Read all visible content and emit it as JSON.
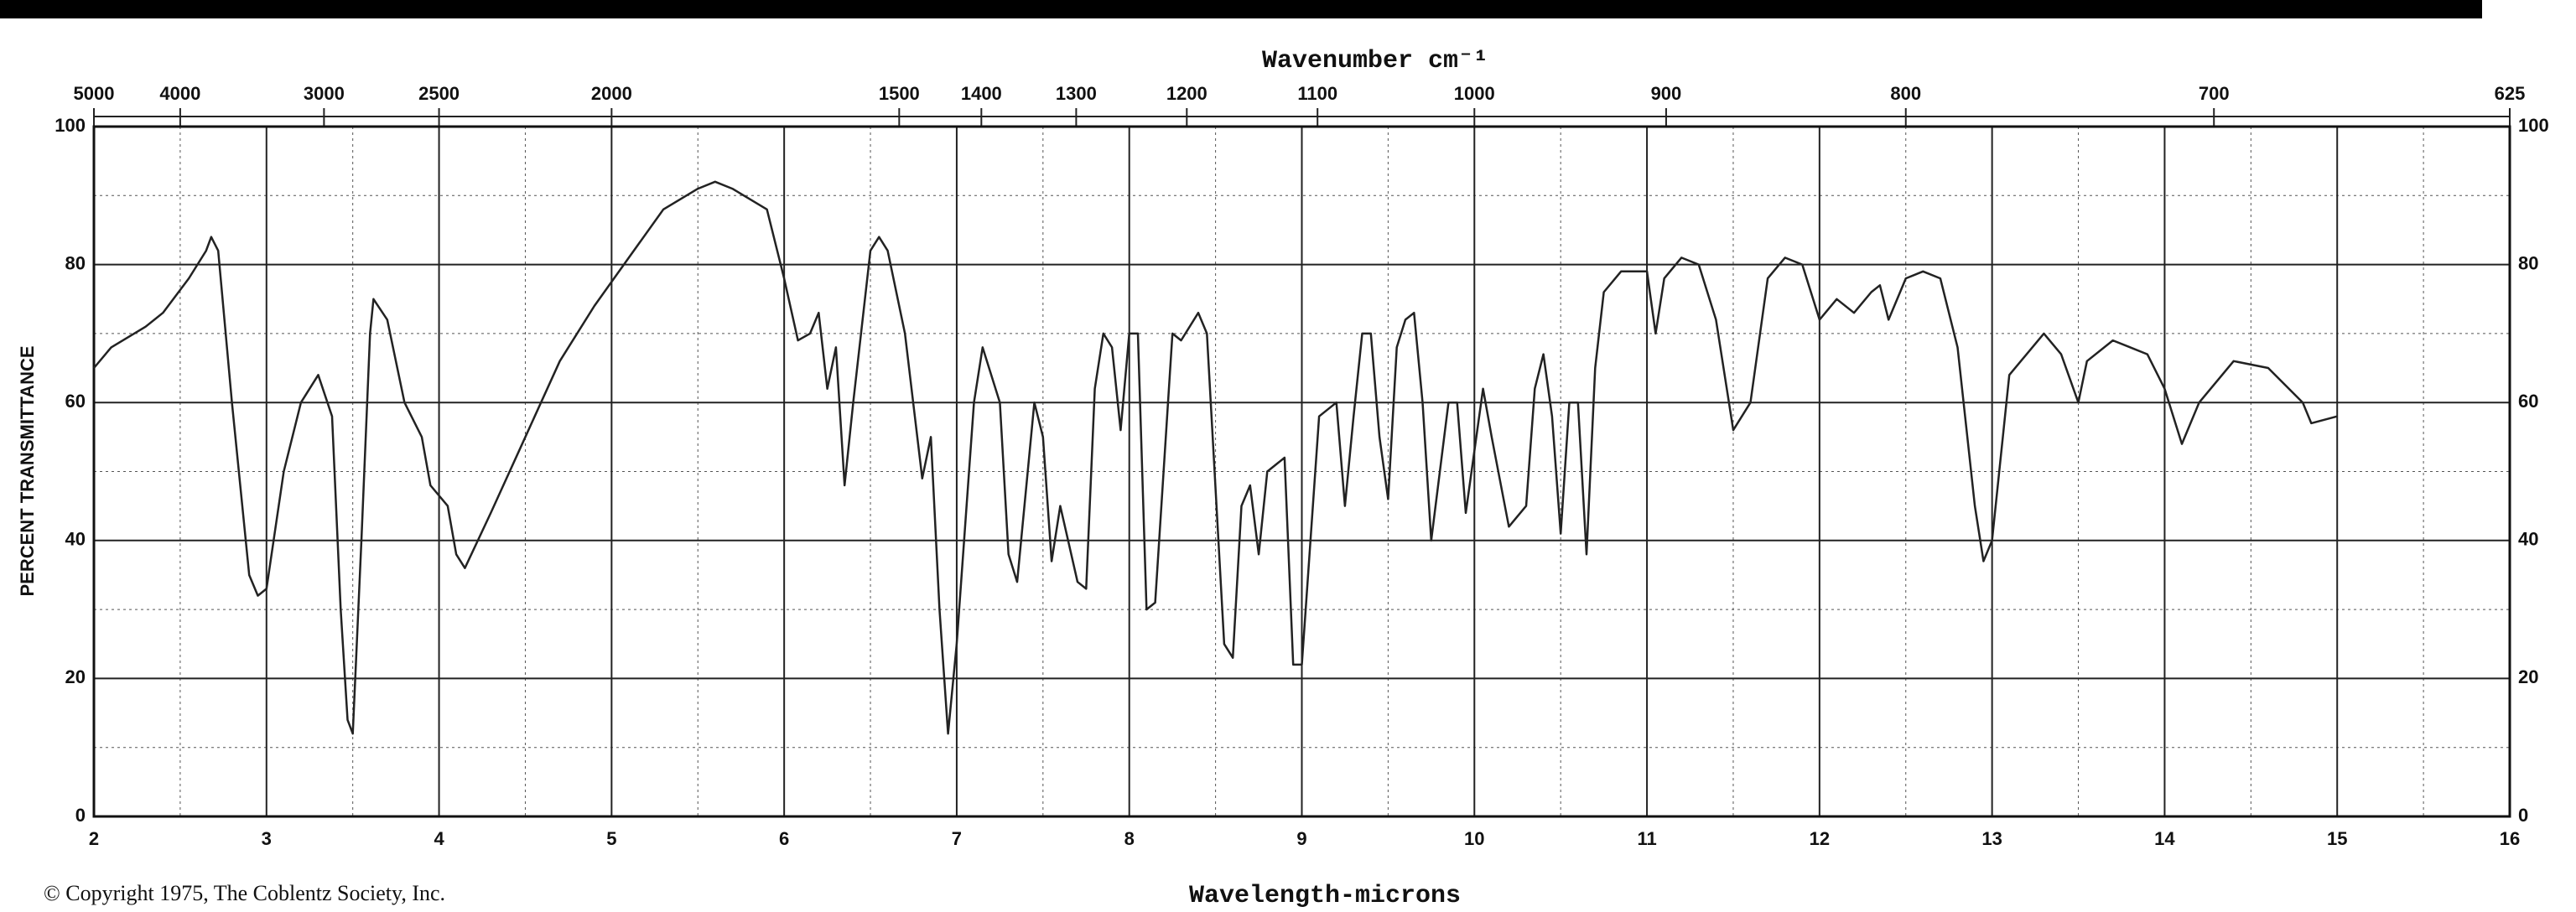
{
  "chart_data": {
    "type": "line",
    "title": "Wavenumber cm⁻¹",
    "x_label": "Wavelength-microns",
    "y_label": "PERCENT TRANSMITTANCE",
    "copyright": "© Copyright 1975, The Coblentz Society, Inc.",
    "xlim": [
      2,
      16
    ],
    "xticks": [
      2,
      3,
      4,
      5,
      6,
      7,
      8,
      9,
      10,
      11,
      12,
      13,
      14,
      15,
      16
    ],
    "xminorticks": [
      2.5,
      3.5,
      4.5,
      5.5,
      6.5,
      7.5,
      8.5,
      9.5,
      10.5,
      11.5,
      12.5,
      13.5,
      14.5,
      15.5
    ],
    "x2lim": [
      5000,
      625
    ],
    "x2scale": "reciprocal",
    "x2ticks": [
      5000,
      4000,
      3000,
      2500,
      2000,
      1500,
      1400,
      1300,
      1200,
      1100,
      1000,
      900,
      800,
      700,
      625
    ],
    "ylim": [
      0,
      100
    ],
    "yticks": [
      0,
      20,
      40,
      60,
      80,
      100
    ],
    "yminorticks": [
      10,
      30,
      50,
      70,
      90
    ],
    "grid": true,
    "color": "#222222",
    "x": [
      2.0,
      2.1,
      2.3,
      2.4,
      2.55,
      2.65,
      2.68,
      2.72,
      2.8,
      2.9,
      2.95,
      3.0,
      3.1,
      3.2,
      3.3,
      3.38,
      3.43,
      3.47,
      3.5,
      3.55,
      3.6,
      3.62,
      3.7,
      3.8,
      3.9,
      3.95,
      4.05,
      4.1,
      4.15,
      4.3,
      4.5,
      4.7,
      4.9,
      5.1,
      5.3,
      5.5,
      5.6,
      5.7,
      5.9,
      6.0,
      6.08,
      6.15,
      6.2,
      6.25,
      6.3,
      6.35,
      6.4,
      6.5,
      6.55,
      6.6,
      6.7,
      6.8,
      6.85,
      6.9,
      6.95,
      7.0,
      7.1,
      7.15,
      7.25,
      7.3,
      7.35,
      7.45,
      7.5,
      7.55,
      7.6,
      7.7,
      7.75,
      7.8,
      7.85,
      7.9,
      7.95,
      8.0,
      8.05,
      8.1,
      8.15,
      8.25,
      8.3,
      8.4,
      8.45,
      8.55,
      8.6,
      8.65,
      8.7,
      8.75,
      8.8,
      8.9,
      8.95,
      9.0,
      9.05,
      9.1,
      9.2,
      9.25,
      9.3,
      9.35,
      9.4,
      9.45,
      9.5,
      9.55,
      9.6,
      9.65,
      9.7,
      9.75,
      9.85,
      9.9,
      9.95,
      10.05,
      10.1,
      10.2,
      10.3,
      10.35,
      10.4,
      10.45,
      10.5,
      10.55,
      10.6,
      10.65,
      10.7,
      10.75,
      10.85,
      11.0,
      11.05,
      11.1,
      11.2,
      11.3,
      11.4,
      11.5,
      11.6,
      11.7,
      11.8,
      11.9,
      12.0,
      12.1,
      12.2,
      12.3,
      12.35,
      12.4,
      12.5,
      12.6,
      12.7,
      12.8,
      12.9,
      12.95,
      13.0,
      13.1,
      13.3,
      13.4,
      13.5,
      13.55,
      13.7,
      13.9,
      14.0,
      14.1,
      14.2,
      14.4,
      14.6,
      14.8,
      14.85,
      15.0
    ],
    "values": [
      65,
      68,
      71,
      73,
      78,
      82,
      84,
      82,
      60,
      35,
      32,
      33,
      50,
      60,
      64,
      58,
      30,
      14,
      12,
      40,
      70,
      75,
      72,
      60,
      55,
      48,
      45,
      38,
      36,
      44,
      55,
      66,
      74,
      81,
      88,
      91,
      92,
      91,
      88,
      78,
      69,
      70,
      73,
      62,
      68,
      48,
      60,
      82,
      84,
      82,
      70,
      49,
      55,
      30,
      12,
      25,
      60,
      68,
      60,
      38,
      34,
      60,
      55,
      37,
      45,
      34,
      33,
      62,
      70,
      68,
      56,
      70,
      70,
      30,
      31,
      70,
      69,
      73,
      70,
      25,
      23,
      45,
      48,
      38,
      50,
      52,
      22,
      22,
      40,
      58,
      60,
      45,
      58,
      70,
      70,
      55,
      46,
      68,
      72,
      73,
      60,
      40,
      60,
      60,
      44,
      62,
      55,
      42,
      45,
      62,
      67,
      58,
      41,
      60,
      60,
      38,
      65,
      76,
      79,
      79,
      70,
      78,
      81,
      80,
      72,
      56,
      60,
      78,
      81,
      80,
      72,
      75,
      73,
      76,
      77,
      72,
      78,
      79,
      78,
      68,
      45,
      37,
      40,
      64,
      70,
      67,
      60,
      66,
      69,
      67,
      62,
      54,
      60,
      66,
      65,
      60,
      57,
      58
    ]
  }
}
